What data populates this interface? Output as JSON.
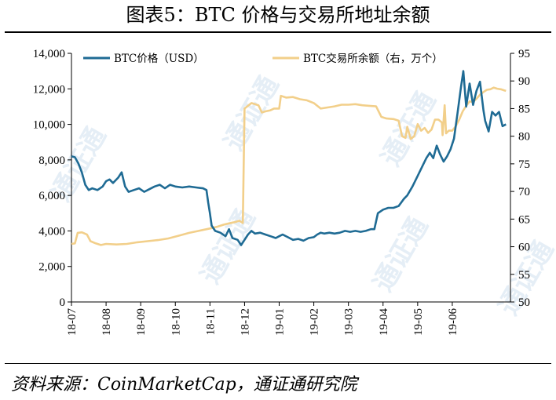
{
  "header": {
    "title": "图表5：BTC 价格与交易所地址余额"
  },
  "footer": {
    "source": "资料来源：CoinMarketCap，通证通研究院"
  },
  "chart_data": {
    "type": "line",
    "left_axis": {
      "ylim": [
        0,
        14000
      ],
      "ticks": [
        "0",
        "2,000",
        "4,000",
        "6,000",
        "8,000",
        "10,000",
        "12,000",
        "14,000"
      ]
    },
    "right_axis": {
      "ylim": [
        50,
        95
      ],
      "ticks": [
        "50",
        "55",
        "60",
        "65",
        "70",
        "75",
        "80",
        "85",
        "90",
        "95"
      ]
    },
    "x_ticks": [
      "18-07",
      "18-08",
      "18-09",
      "18-10",
      "18-11",
      "18-12",
      "19-01",
      "19-02",
      "19-03",
      "19-04",
      "19-05",
      "19-06"
    ],
    "x_range": [
      0,
      12
    ],
    "series": [
      {
        "name": "BTC价格（USD）",
        "axis": "left",
        "color": "#1f6b94",
        "points": [
          [
            0.0,
            8200
          ],
          [
            0.1,
            8150
          ],
          [
            0.2,
            7800
          ],
          [
            0.3,
            7300
          ],
          [
            0.4,
            6600
          ],
          [
            0.5,
            6300
          ],
          [
            0.6,
            6400
          ],
          [
            0.75,
            6300
          ],
          [
            0.9,
            6500
          ],
          [
            1.0,
            6800
          ],
          [
            1.1,
            6900
          ],
          [
            1.2,
            6700
          ],
          [
            1.35,
            7000
          ],
          [
            1.45,
            7300
          ],
          [
            1.55,
            6500
          ],
          [
            1.65,
            6200
          ],
          [
            1.8,
            6300
          ],
          [
            1.95,
            6400
          ],
          [
            2.1,
            6200
          ],
          [
            2.25,
            6350
          ],
          [
            2.4,
            6500
          ],
          [
            2.55,
            6600
          ],
          [
            2.7,
            6400
          ],
          [
            2.85,
            6600
          ],
          [
            3.0,
            6500
          ],
          [
            3.2,
            6450
          ],
          [
            3.4,
            6500
          ],
          [
            3.6,
            6450
          ],
          [
            3.8,
            6400
          ],
          [
            3.9,
            6300
          ],
          [
            3.95,
            5600
          ],
          [
            4.0,
            5000
          ],
          [
            4.05,
            4300
          ],
          [
            4.15,
            4000
          ],
          [
            4.3,
            3900
          ],
          [
            4.45,
            3700
          ],
          [
            4.55,
            4100
          ],
          [
            4.65,
            3600
          ],
          [
            4.8,
            3500
          ],
          [
            4.9,
            3200
          ],
          [
            5.0,
            3500
          ],
          [
            5.1,
            3800
          ],
          [
            5.2,
            4000
          ],
          [
            5.3,
            3850
          ],
          [
            5.45,
            3900
          ],
          [
            5.6,
            3800
          ],
          [
            5.75,
            3700
          ],
          [
            5.9,
            3600
          ],
          [
            6.0,
            3700
          ],
          [
            6.1,
            3800
          ],
          [
            6.25,
            3650
          ],
          [
            6.4,
            3500
          ],
          [
            6.55,
            3550
          ],
          [
            6.7,
            3450
          ],
          [
            6.85,
            3600
          ],
          [
            7.0,
            3650
          ],
          [
            7.1,
            3800
          ],
          [
            7.2,
            3900
          ],
          [
            7.3,
            3850
          ],
          [
            7.45,
            3900
          ],
          [
            7.6,
            3850
          ],
          [
            7.75,
            3900
          ],
          [
            7.9,
            4000
          ],
          [
            8.05,
            3950
          ],
          [
            8.2,
            4000
          ],
          [
            8.35,
            3950
          ],
          [
            8.5,
            4000
          ],
          [
            8.65,
            4100
          ],
          [
            8.75,
            4100
          ],
          [
            8.85,
            5000
          ],
          [
            9.0,
            5200
          ],
          [
            9.15,
            5300
          ],
          [
            9.3,
            5300
          ],
          [
            9.45,
            5400
          ],
          [
            9.6,
            5800
          ],
          [
            9.7,
            6000
          ],
          [
            9.85,
            6500
          ],
          [
            10.0,
            7100
          ],
          [
            10.15,
            7700
          ],
          [
            10.25,
            8100
          ],
          [
            10.35,
            8400
          ],
          [
            10.45,
            8100
          ],
          [
            10.55,
            8800
          ],
          [
            10.65,
            8300
          ],
          [
            10.75,
            7900
          ],
          [
            10.85,
            8200
          ],
          [
            10.95,
            8600
          ],
          [
            11.05,
            9200
          ],
          [
            11.15,
            10600
          ],
          [
            11.25,
            12100
          ],
          [
            11.32,
            13000
          ],
          [
            11.4,
            11000
          ],
          [
            11.5,
            12300
          ],
          [
            11.6,
            11100
          ],
          [
            11.7,
            11900
          ],
          [
            11.8,
            12400
          ],
          [
            11.9,
            10800
          ],
          [
            11.95,
            10200
          ],
          [
            12.05,
            9600
          ],
          [
            12.15,
            10700
          ],
          [
            12.25,
            10500
          ],
          [
            12.35,
            10700
          ],
          [
            12.45,
            9900
          ],
          [
            12.55,
            10000
          ]
        ]
      },
      {
        "name": "BTC交易所余额（右，万个）",
        "axis": "right",
        "color": "#f2cf8a",
        "points": [
          [
            0.0,
            60.5
          ],
          [
            0.1,
            60.6
          ],
          [
            0.18,
            62.5
          ],
          [
            0.3,
            62.6
          ],
          [
            0.45,
            62.2
          ],
          [
            0.55,
            61.0
          ],
          [
            0.7,
            60.6
          ],
          [
            0.85,
            60.3
          ],
          [
            1.0,
            60.5
          ],
          [
            1.3,
            60.4
          ],
          [
            1.6,
            60.5
          ],
          [
            1.9,
            60.8
          ],
          [
            2.2,
            61.0
          ],
          [
            2.5,
            61.2
          ],
          [
            2.8,
            61.5
          ],
          [
            3.1,
            62.0
          ],
          [
            3.4,
            62.5
          ],
          [
            3.7,
            62.9
          ],
          [
            4.0,
            63.3
          ],
          [
            4.2,
            63.6
          ],
          [
            4.4,
            64.0
          ],
          [
            4.6,
            64.3
          ],
          [
            4.75,
            64.5
          ],
          [
            4.85,
            64.7
          ],
          [
            4.95,
            64.3
          ],
          [
            5.0,
            85.0
          ],
          [
            5.1,
            85.5
          ],
          [
            5.2,
            86.0
          ],
          [
            5.4,
            85.6
          ],
          [
            5.5,
            84.3
          ],
          [
            5.6,
            84.5
          ],
          [
            5.75,
            84.7
          ],
          [
            5.85,
            85.0
          ],
          [
            6.0,
            85.0
          ],
          [
            6.05,
            87.3
          ],
          [
            6.2,
            87.0
          ],
          [
            6.4,
            87.1
          ],
          [
            6.6,
            86.7
          ],
          [
            6.8,
            86.5
          ],
          [
            7.0,
            86.0
          ],
          [
            7.2,
            85.0
          ],
          [
            7.4,
            85.2
          ],
          [
            7.6,
            85.4
          ],
          [
            7.8,
            85.7
          ],
          [
            8.0,
            85.7
          ],
          [
            8.2,
            85.8
          ],
          [
            8.4,
            85.6
          ],
          [
            8.6,
            85.5
          ],
          [
            8.8,
            85.4
          ],
          [
            8.95,
            83.5
          ],
          [
            9.1,
            83.2
          ],
          [
            9.3,
            83.1
          ],
          [
            9.45,
            82.8
          ],
          [
            9.55,
            80.0
          ],
          [
            9.65,
            79.7
          ],
          [
            9.7,
            81.7
          ],
          [
            9.8,
            79.5
          ],
          [
            9.9,
            80.0
          ],
          [
            10.0,
            82.2
          ],
          [
            10.1,
            81.0
          ],
          [
            10.2,
            81.5
          ],
          [
            10.3,
            80.6
          ],
          [
            10.4,
            81.2
          ],
          [
            10.5,
            83.0
          ],
          [
            10.6,
            83.0
          ],
          [
            10.7,
            82.5
          ],
          [
            10.72,
            80.2
          ],
          [
            10.78,
            85.6
          ],
          [
            10.82,
            80.5
          ],
          [
            10.9,
            81.0
          ],
          [
            11.0,
            81.0
          ],
          [
            11.1,
            81.8
          ],
          [
            11.2,
            83.0
          ],
          [
            11.3,
            84.5
          ],
          [
            11.4,
            85.5
          ],
          [
            11.5,
            86.3
          ],
          [
            11.6,
            86.2
          ],
          [
            11.7,
            86.8
          ],
          [
            11.8,
            87.5
          ],
          [
            11.9,
            88.0
          ],
          [
            12.0,
            88.4
          ],
          [
            12.1,
            88.5
          ],
          [
            12.2,
            88.8
          ],
          [
            12.3,
            88.6
          ],
          [
            12.4,
            88.5
          ],
          [
            12.5,
            88.3
          ],
          [
            12.55,
            88.2
          ]
        ]
      }
    ]
  },
  "watermark": {
    "text": "通证通"
  }
}
